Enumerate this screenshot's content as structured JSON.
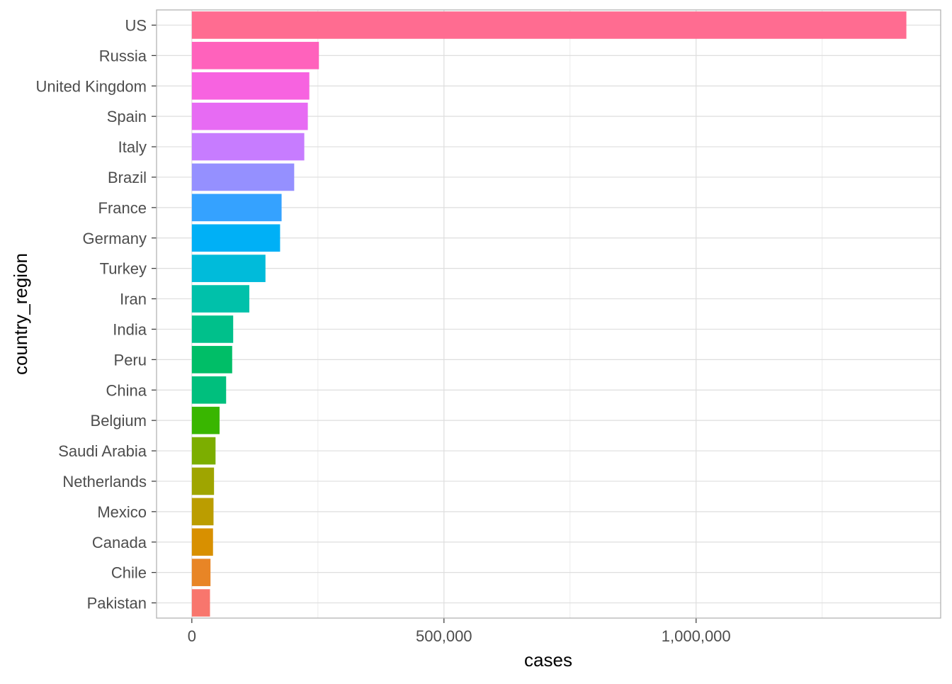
{
  "chart_data": {
    "type": "bar",
    "orientation": "horizontal",
    "xlabel": "cases",
    "ylabel": "country_region",
    "xlim": [
      -70000,
      1485000
    ],
    "x_ticks": [
      {
        "value": 0,
        "label": "0"
      },
      {
        "value": 500000,
        "label": "500,000"
      },
      {
        "value": 1000000,
        "label": "1,000,000"
      }
    ],
    "x_minor_gridlines": [
      250000,
      750000,
      1250000
    ],
    "grid": true,
    "legend": "none",
    "categories": [
      "US",
      "Russia",
      "United Kingdom",
      "Spain",
      "Italy",
      "Brazil",
      "France",
      "Germany",
      "Turkey",
      "Iran",
      "India",
      "Peru",
      "China",
      "Belgium",
      "Saudi Arabia",
      "Netherlands",
      "Mexico",
      "Canada",
      "Chile",
      "Pakistan"
    ],
    "values": [
      1417000,
      252000,
      233000,
      230000,
      223000,
      203000,
      178000,
      175000,
      146000,
      114000,
      82000,
      80000,
      68000,
      55000,
      47000,
      44000,
      43000,
      42000,
      37000,
      36000
    ],
    "colors": [
      "#FF6C91",
      "#FF62BC",
      "#F763E0",
      "#E76BF3",
      "#C77CFF",
      "#9590FF",
      "#35A2FF",
      "#00B0F6",
      "#00BBDA",
      "#00C1AA",
      "#00C08B",
      "#00BE67",
      "#00BF7D",
      "#39B600",
      "#7CAE00",
      "#9FA500",
      "#BB9D00",
      "#D89000",
      "#E88526",
      "#F8766D"
    ]
  }
}
